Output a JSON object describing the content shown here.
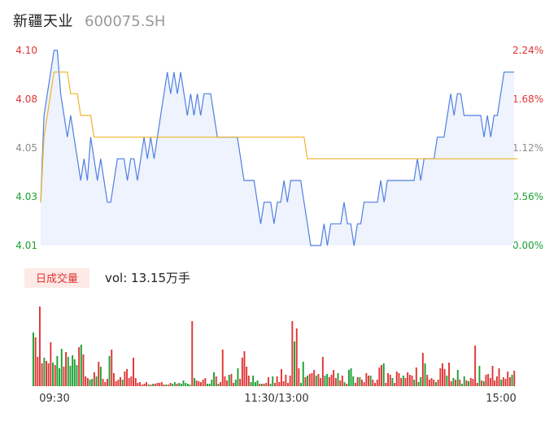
{
  "header": {
    "name": "新疆天业",
    "code": "600075.SH"
  },
  "colors": {
    "price_line": "#4f7fe0",
    "avg_line": "#f0b429",
    "up": "#e03434",
    "down": "#1aa031",
    "neutral": "#8c8c8c",
    "area_fill": "#eef3fd",
    "badge_bg": "#fde9e6"
  },
  "volume_panel": {
    "badge": "日成交量",
    "label": "vol: 13.15万手"
  },
  "chart_data": {
    "type": "line",
    "y_left_ticks": [
      "4.10",
      "4.08",
      "4.05",
      "4.03",
      "4.01"
    ],
    "y_right_ticks": [
      "2.24%",
      "1.68%",
      "1.12%",
      "0.56%",
      "0.00%"
    ],
    "ylim": [
      4.01,
      4.1
    ],
    "x_tick_labels": [
      "09:30",
      "11:30/13:00",
      "15:00"
    ],
    "series": [
      {
        "values": [
          4.03,
          4.07,
          4.08,
          4.09,
          4.1,
          4.1,
          4.08,
          4.07,
          4.06,
          4.07,
          4.06,
          4.05,
          4.04,
          4.05,
          4.04,
          4.06,
          4.05,
          4.04,
          4.05,
          4.04,
          4.03,
          4.03,
          4.04,
          4.05,
          4.05,
          4.05,
          4.04,
          4.05,
          4.05,
          4.04,
          4.05,
          4.06,
          4.05,
          4.06,
          4.05,
          4.06,
          4.07,
          4.08,
          4.09,
          4.08,
          4.09,
          4.08,
          4.09,
          4.08,
          4.07,
          4.08,
          4.07,
          4.08,
          4.07,
          4.08,
          4.08,
          4.08,
          4.07,
          4.06,
          4.06,
          4.06,
          4.06,
          4.06,
          4.06,
          4.06,
          4.05,
          4.04,
          4.04,
          4.04,
          4.04,
          4.03,
          4.02,
          4.03,
          4.03,
          4.03,
          4.02,
          4.03,
          4.03,
          4.04,
          4.03,
          4.04,
          4.04,
          4.04,
          4.04,
          4.03,
          4.02,
          4.01,
          4.01,
          4.01,
          4.01,
          4.02,
          4.01,
          4.02,
          4.02,
          4.02,
          4.02,
          4.03,
          4.02,
          4.02,
          4.01,
          4.02,
          4.02,
          4.03,
          4.03,
          4.03,
          4.03,
          4.03,
          4.04,
          4.03,
          4.04,
          4.04,
          4.04,
          4.04,
          4.04,
          4.04,
          4.04,
          4.04,
          4.04,
          4.05,
          4.04,
          4.05,
          4.05,
          4.05,
          4.05,
          4.06,
          4.06,
          4.06,
          4.07,
          4.08,
          4.07,
          4.08,
          4.08,
          4.07,
          4.07,
          4.07,
          4.07,
          4.07,
          4.07,
          4.06,
          4.07,
          4.06,
          4.07,
          4.07,
          4.08,
          4.09,
          4.09,
          4.09,
          4.09
        ]
      },
      {
        "values": [
          4.03,
          4.06,
          4.07,
          4.08,
          4.09,
          4.09,
          4.09,
          4.09,
          4.09,
          4.08,
          4.08,
          4.08,
          4.07,
          4.07,
          4.07,
          4.07,
          4.06,
          4.06,
          4.06,
          4.06,
          4.06,
          4.06,
          4.06,
          4.06,
          4.06,
          4.06,
          4.06,
          4.06,
          4.06,
          4.06,
          4.06,
          4.06,
          4.06,
          4.06,
          4.06,
          4.06,
          4.06,
          4.06,
          4.06,
          4.06,
          4.06,
          4.06,
          4.06,
          4.06,
          4.06,
          4.06,
          4.06,
          4.06,
          4.06,
          4.06,
          4.06,
          4.06,
          4.06,
          4.06,
          4.06,
          4.06,
          4.06,
          4.06,
          4.06,
          4.06,
          4.06,
          4.06,
          4.06,
          4.06,
          4.06,
          4.06,
          4.06,
          4.06,
          4.06,
          4.06,
          4.06,
          4.06,
          4.06,
          4.06,
          4.06,
          4.06,
          4.06,
          4.06,
          4.06,
          4.06,
          4.05,
          4.05,
          4.05,
          4.05,
          4.05,
          4.05,
          4.05,
          4.05,
          4.05,
          4.05,
          4.05,
          4.05,
          4.05,
          4.05,
          4.05,
          4.05,
          4.05,
          4.05,
          4.05,
          4.05,
          4.05,
          4.05,
          4.05,
          4.05,
          4.05,
          4.05,
          4.05,
          4.05,
          4.05,
          4.05,
          4.05,
          4.05,
          4.05,
          4.05,
          4.05,
          4.05,
          4.05,
          4.05,
          4.05,
          4.05,
          4.05,
          4.05,
          4.05,
          4.05,
          4.05,
          4.05,
          4.05,
          4.05,
          4.05,
          4.05,
          4.05,
          4.05,
          4.05,
          4.05,
          4.05,
          4.05,
          4.05,
          4.05,
          4.05,
          4.05,
          4.05,
          4.05,
          4.05,
          4.05
        ]
      }
    ],
    "volume": [
      66,
      60,
      36,
      98,
      28,
      35,
      31,
      28,
      54,
      29,
      26,
      37,
      22,
      46,
      24,
      42,
      36,
      25,
      38,
      33,
      26,
      48,
      51,
      39,
      12,
      10,
      8,
      9,
      17,
      12,
      30,
      24,
      9,
      5,
      9,
      37,
      45,
      16,
      6,
      8,
      11,
      8,
      18,
      21,
      10,
      12,
      35,
      10,
      4,
      5,
      2,
      3,
      5,
      2,
      2,
      3,
      3,
      4,
      4,
      5,
      2,
      2,
      2,
      4,
      3,
      5,
      3,
      4,
      3,
      7,
      4,
      3,
      2,
      80,
      10,
      7,
      6,
      5,
      8,
      10,
      3,
      3,
      8,
      17,
      12,
      3,
      5,
      45,
      12,
      7,
      14,
      15,
      4,
      8,
      22,
      9,
      35,
      43,
      24,
      13,
      5,
      13,
      5,
      7,
      3,
      3,
      3,
      4,
      11,
      3,
      12,
      4,
      12,
      5,
      21,
      6,
      14,
      4,
      13,
      80,
      55,
      71,
      22,
      4,
      30,
      11,
      13,
      15,
      16,
      20,
      13,
      15,
      10,
      36,
      13,
      15,
      11,
      14,
      20,
      10,
      16,
      7,
      13,
      5,
      3,
      20,
      22,
      12,
      4,
      11,
      11,
      8,
      5,
      16,
      13,
      13,
      8,
      4,
      8,
      23,
      26,
      28,
      4,
      16,
      14,
      10,
      4,
      18,
      16,
      10,
      13,
      10,
      17,
      14,
      13,
      8,
      23,
      5,
      11,
      41,
      28,
      14,
      8,
      10,
      8,
      5,
      8,
      22,
      28,
      21,
      13,
      29,
      6,
      10,
      8,
      20,
      8,
      3,
      12,
      7,
      6,
      10,
      9,
      50,
      4,
      25,
      7,
      6,
      14,
      15,
      10,
      25,
      7,
      12,
      22,
      8,
      11,
      9,
      18,
      11,
      14,
      19
    ]
  }
}
